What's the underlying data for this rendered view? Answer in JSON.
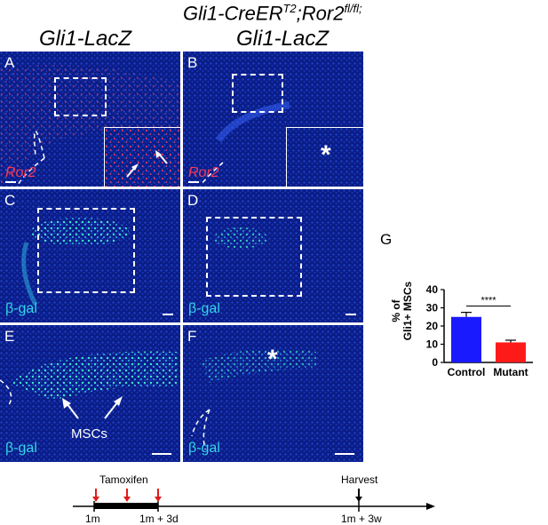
{
  "column_titles": {
    "left": "Gli1-LacZ",
    "right_line1": "Gli1-CreER",
    "right_line1_sup1": "T2",
    "right_line1_mid": ";Ror2",
    "right_line1_sup2": "fl/fl;",
    "right_line2": "Gli1-LacZ"
  },
  "panels": {
    "A": {
      "label": "A",
      "stain": "Ror2"
    },
    "B": {
      "label": "B",
      "stain": "Ror2",
      "inset_mark": "*"
    },
    "C": {
      "label": "C",
      "stain": "β-gal"
    },
    "D": {
      "label": "D",
      "stain": "β-gal"
    },
    "E": {
      "label": "E",
      "stain": "β-gal",
      "annotation": "MSCs"
    },
    "F": {
      "label": "F",
      "stain": "β-gal",
      "mark": "*"
    }
  },
  "colors": {
    "tissue_blue": "#1030b8",
    "ror2_red": "#ff3b56",
    "gal_cyan": "#33d6e6",
    "control_bar": "#1a1aff",
    "mutant_bar": "#ff1a1a"
  },
  "panel_g": {
    "label": "G",
    "ylabel_line1": "% of",
    "ylabel_line2": "Gli1+ MSCs",
    "significance": "****"
  },
  "chart_data": {
    "type": "bar",
    "categories": [
      "Control",
      "Mutant"
    ],
    "values": [
      25,
      11
    ],
    "errors": [
      2.5,
      1.2
    ],
    "ylabel": "% of Gli1+ MSCs",
    "ylim": [
      0,
      40
    ],
    "yticks": [
      0,
      10,
      20,
      30,
      40
    ],
    "colors": [
      "#1a1aff",
      "#ff1a1a"
    ],
    "significance": "****"
  },
  "timeline": {
    "top_label_left": "Tamoxifen",
    "top_label_right": "Harvest",
    "tick_labels": [
      "1m",
      "1m + 3d",
      "1m + 3w"
    ]
  }
}
